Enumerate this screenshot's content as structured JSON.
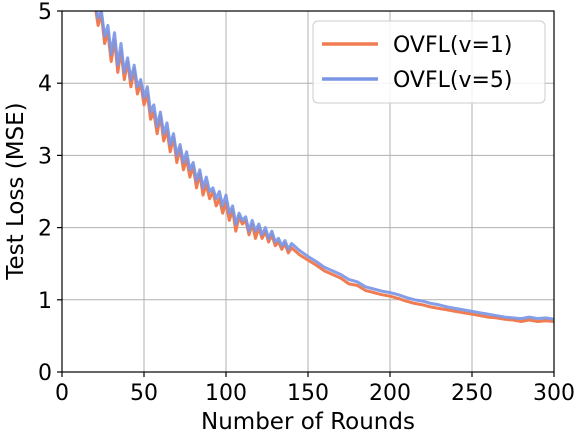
{
  "chart_data": {
    "type": "line",
    "title": "",
    "xlabel": "Number of Rounds",
    "ylabel": "Test Loss (MSE)",
    "xlim": [
      0,
      300
    ],
    "ylim": [
      0,
      5
    ],
    "xticks": [
      0,
      50,
      100,
      150,
      200,
      250,
      300
    ],
    "yticks": [
      0,
      1,
      2,
      3,
      4,
      5
    ],
    "grid": true,
    "legend_position": "top-right",
    "series": [
      {
        "name": "OVFL(v=1)",
        "color": "#f07c52",
        "x": [
          20,
          22,
          24,
          26,
          28,
          30,
          32,
          34,
          36,
          38,
          40,
          42,
          44,
          46,
          48,
          50,
          52,
          54,
          56,
          58,
          60,
          62,
          64,
          66,
          68,
          70,
          72,
          74,
          76,
          78,
          80,
          82,
          84,
          86,
          88,
          90,
          92,
          94,
          96,
          98,
          100,
          102,
          104,
          106,
          108,
          110,
          112,
          114,
          116,
          118,
          120,
          122,
          124,
          126,
          128,
          130,
          132,
          134,
          136,
          138,
          140,
          145,
          150,
          155,
          160,
          165,
          170,
          175,
          180,
          185,
          190,
          195,
          200,
          205,
          210,
          215,
          220,
          225,
          230,
          235,
          240,
          245,
          250,
          255,
          260,
          265,
          270,
          275,
          280,
          285,
          290,
          295,
          300
        ],
        "y": [
          5.1,
          4.8,
          4.95,
          4.55,
          4.7,
          4.3,
          4.6,
          4.15,
          4.45,
          4.05,
          4.3,
          3.95,
          4.2,
          3.85,
          4.0,
          3.7,
          3.85,
          3.5,
          3.6,
          3.3,
          3.55,
          3.2,
          3.35,
          3.05,
          3.25,
          2.9,
          3.1,
          2.8,
          2.95,
          2.7,
          2.85,
          2.55,
          2.75,
          2.45,
          2.6,
          2.4,
          2.5,
          2.3,
          2.4,
          2.2,
          2.35,
          2.1,
          2.25,
          1.95,
          2.15,
          2.05,
          2.1,
          1.9,
          2.05,
          1.85,
          2.0,
          1.85,
          1.95,
          1.8,
          1.9,
          1.75,
          1.8,
          1.7,
          1.78,
          1.65,
          1.72,
          1.62,
          1.55,
          1.48,
          1.4,
          1.35,
          1.3,
          1.22,
          1.2,
          1.13,
          1.1,
          1.07,
          1.05,
          1.02,
          0.98,
          0.95,
          0.93,
          0.9,
          0.88,
          0.86,
          0.84,
          0.82,
          0.8,
          0.78,
          0.76,
          0.75,
          0.73,
          0.72,
          0.7,
          0.72,
          0.7,
          0.71,
          0.7
        ]
      },
      {
        "name": "OVFL(v=5)",
        "color": "#7b96e6",
        "x": [
          20,
          22,
          24,
          26,
          28,
          30,
          32,
          34,
          36,
          38,
          40,
          42,
          44,
          46,
          48,
          50,
          52,
          54,
          56,
          58,
          60,
          62,
          64,
          66,
          68,
          70,
          72,
          74,
          76,
          78,
          80,
          82,
          84,
          86,
          88,
          90,
          92,
          94,
          96,
          98,
          100,
          102,
          104,
          106,
          108,
          110,
          112,
          114,
          116,
          118,
          120,
          122,
          124,
          126,
          128,
          130,
          132,
          134,
          136,
          138,
          140,
          145,
          150,
          155,
          160,
          165,
          170,
          175,
          180,
          185,
          190,
          195,
          200,
          205,
          210,
          215,
          220,
          225,
          230,
          235,
          240,
          245,
          250,
          255,
          260,
          265,
          270,
          275,
          280,
          285,
          290,
          295,
          300
        ],
        "y": [
          5.15,
          4.9,
          5.0,
          4.65,
          4.8,
          4.4,
          4.7,
          4.25,
          4.55,
          4.15,
          4.35,
          4.05,
          4.25,
          3.95,
          4.05,
          3.8,
          3.95,
          3.6,
          3.7,
          3.4,
          3.6,
          3.3,
          3.45,
          3.15,
          3.3,
          3.0,
          3.15,
          2.9,
          3.05,
          2.8,
          2.9,
          2.65,
          2.8,
          2.55,
          2.7,
          2.5,
          2.55,
          2.4,
          2.5,
          2.3,
          2.45,
          2.2,
          2.3,
          2.05,
          2.2,
          2.1,
          2.15,
          1.95,
          2.1,
          1.95,
          2.05,
          1.9,
          2.0,
          1.85,
          1.95,
          1.8,
          1.85,
          1.75,
          1.82,
          1.7,
          1.78,
          1.68,
          1.6,
          1.53,
          1.45,
          1.4,
          1.35,
          1.28,
          1.25,
          1.18,
          1.15,
          1.12,
          1.1,
          1.07,
          1.03,
          1.0,
          0.98,
          0.95,
          0.93,
          0.9,
          0.88,
          0.86,
          0.84,
          0.82,
          0.8,
          0.78,
          0.76,
          0.75,
          0.74,
          0.76,
          0.74,
          0.75,
          0.73
        ]
      }
    ]
  }
}
